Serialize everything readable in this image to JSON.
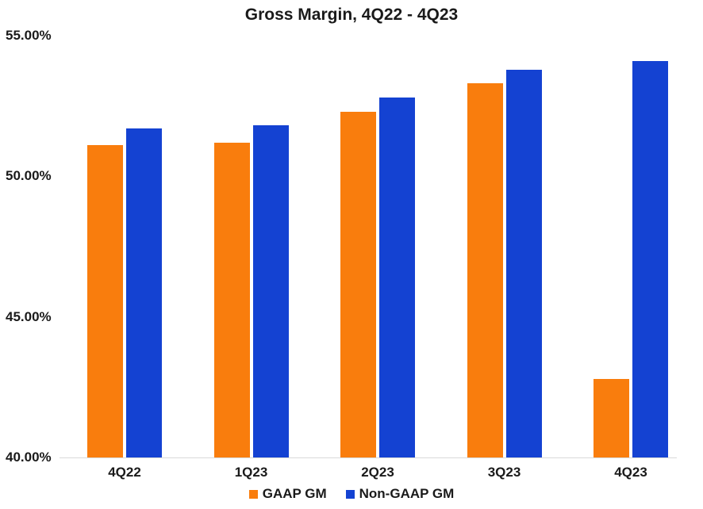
{
  "chart_data": {
    "type": "bar",
    "title": "Gross Margin, 4Q22 - 4Q23",
    "unit": "%",
    "categories": [
      "4Q22",
      "1Q23",
      "2Q23",
      "3Q23",
      "4Q23"
    ],
    "series": [
      {
        "name": "GAAP GM",
        "color": "#F97D0D",
        "values": [
          51.1,
          51.2,
          52.3,
          53.3,
          42.8
        ]
      },
      {
        "name": "Non-GAAP GM",
        "color": "#1442D2",
        "values": [
          51.7,
          51.8,
          52.8,
          53.8,
          54.1
        ]
      }
    ],
    "xlabel": "",
    "ylabel": "",
    "ylim": [
      40,
      55
    ],
    "yticks": [
      {
        "value": 55,
        "label": "55.00%"
      },
      {
        "value": 50,
        "label": "50.00%"
      },
      {
        "value": 45,
        "label": "45.00%"
      },
      {
        "value": 40,
        "label": "40.00%"
      }
    ],
    "grid": false,
    "legend_position": "bottom",
    "axis_line_color": "#d9d9d9",
    "text_color": "#1a1a1a"
  }
}
